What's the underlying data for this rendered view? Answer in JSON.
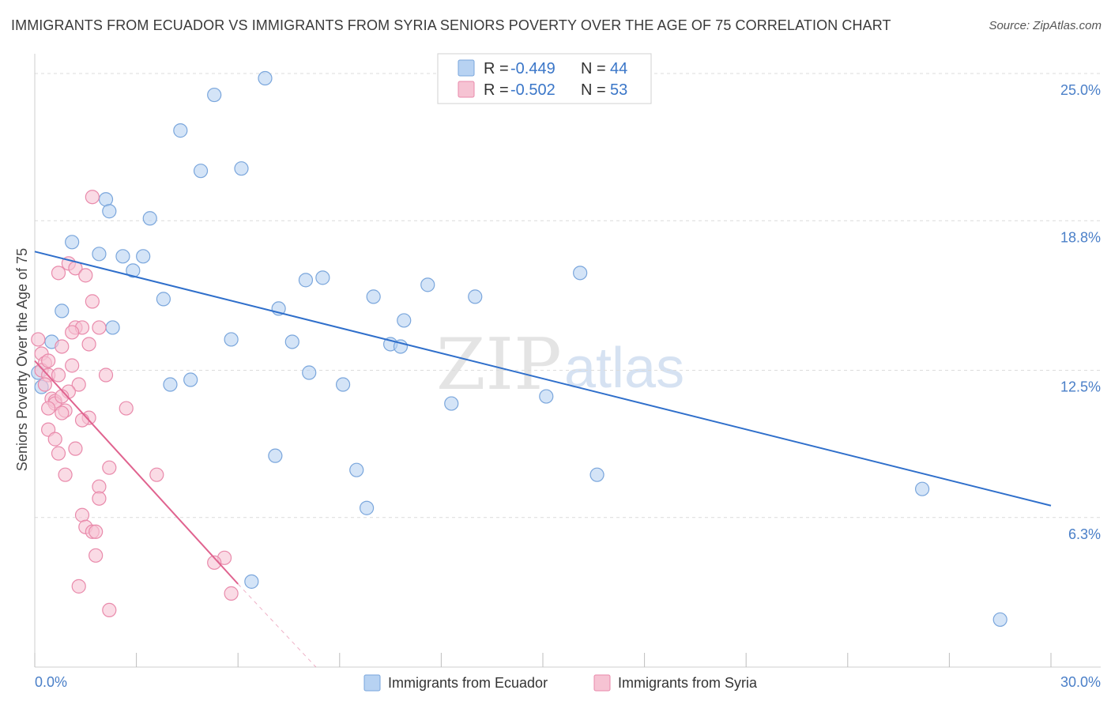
{
  "title": "IMMIGRANTS FROM ECUADOR VS IMMIGRANTS FROM SYRIA SENIORS POVERTY OVER THE AGE OF 75 CORRELATION CHART",
  "source": "Source: ZipAtlas.com",
  "watermark": {
    "zip": "ZIP",
    "atlas": "atlas"
  },
  "colors": {
    "ecuador_fill": "#b7d2f2",
    "ecuador_stroke": "#7aa6dc",
    "ecuador_line": "#2f6fcb",
    "syria_fill": "#f6c3d3",
    "syria_stroke": "#e98aab",
    "syria_line": "#e0638f",
    "grid": "#dcdcdc",
    "tick_label": "#4a7fc8"
  },
  "legend": {
    "r_label": "R =",
    "n_label": "N =",
    "rows": [
      {
        "r": "-0.449",
        "n": "44"
      },
      {
        "r": "-0.502",
        "n": "53"
      }
    ]
  },
  "chart_data": {
    "type": "scatter",
    "title": "IMMIGRANTS FROM ECUADOR VS IMMIGRANTS FROM SYRIA SENIORS POVERTY OVER THE AGE OF 75 CORRELATION CHART",
    "xlabel": "",
    "ylabel": "Seniors Poverty Over the Age of 75",
    "xlim": [
      0,
      30
    ],
    "ylim": [
      0,
      25.5
    ],
    "x_tick_labels": [
      "0.0%",
      "30.0%"
    ],
    "y_ticks": [
      6.3,
      12.5,
      18.8,
      25.0
    ],
    "y_tick_labels": [
      "6.3%",
      "12.5%",
      "18.8%",
      "25.0%"
    ],
    "grid": true,
    "legend_position": "top-center",
    "series": [
      {
        "name": "Immigrants from Ecuador",
        "points": [
          [
            6.8,
            24.8
          ],
          [
            5.3,
            24.1
          ],
          [
            4.3,
            22.6
          ],
          [
            4.9,
            20.9
          ],
          [
            6.1,
            21.0
          ],
          [
            2.1,
            19.7
          ],
          [
            2.2,
            19.2
          ],
          [
            3.4,
            18.9
          ],
          [
            1.1,
            17.9
          ],
          [
            1.9,
            17.4
          ],
          [
            2.6,
            17.3
          ],
          [
            3.2,
            17.3
          ],
          [
            2.9,
            16.7
          ],
          [
            8.0,
            16.3
          ],
          [
            8.5,
            16.4
          ],
          [
            11.6,
            16.1
          ],
          [
            16.1,
            16.6
          ],
          [
            13.0,
            15.6
          ],
          [
            10.0,
            15.6
          ],
          [
            3.8,
            15.5
          ],
          [
            7.2,
            15.1
          ],
          [
            0.8,
            15.0
          ],
          [
            10.9,
            14.6
          ],
          [
            2.3,
            14.3
          ],
          [
            0.5,
            13.7
          ],
          [
            5.8,
            13.8
          ],
          [
            7.6,
            13.7
          ],
          [
            10.5,
            13.6
          ],
          [
            10.8,
            13.5
          ],
          [
            8.1,
            12.4
          ],
          [
            4.6,
            12.1
          ],
          [
            4.0,
            11.9
          ],
          [
            9.1,
            11.9
          ],
          [
            15.1,
            11.4
          ],
          [
            12.3,
            11.1
          ],
          [
            0.2,
            11.8
          ],
          [
            7.1,
            8.9
          ],
          [
            9.5,
            8.3
          ],
          [
            16.6,
            8.1
          ],
          [
            26.2,
            7.5
          ],
          [
            9.8,
            6.7
          ],
          [
            6.4,
            3.6
          ],
          [
            28.5,
            2.0
          ],
          [
            0.1,
            12.4
          ]
        ]
      },
      {
        "name": "Immigrants from Syria",
        "points": [
          [
            1.7,
            19.8
          ],
          [
            1.0,
            17.0
          ],
          [
            1.2,
            16.8
          ],
          [
            0.7,
            16.6
          ],
          [
            1.5,
            16.5
          ],
          [
            1.7,
            15.4
          ],
          [
            1.2,
            14.3
          ],
          [
            1.9,
            14.3
          ],
          [
            1.4,
            14.3
          ],
          [
            1.1,
            14.1
          ],
          [
            0.1,
            13.8
          ],
          [
            0.8,
            13.5
          ],
          [
            1.6,
            13.6
          ],
          [
            0.2,
            13.2
          ],
          [
            0.3,
            12.8
          ],
          [
            1.1,
            12.7
          ],
          [
            0.2,
            12.5
          ],
          [
            0.4,
            12.3
          ],
          [
            0.7,
            12.3
          ],
          [
            2.1,
            12.3
          ],
          [
            0.3,
            11.9
          ],
          [
            1.3,
            11.9
          ],
          [
            1.0,
            11.6
          ],
          [
            0.5,
            11.3
          ],
          [
            0.6,
            11.2
          ],
          [
            0.6,
            11.1
          ],
          [
            0.8,
            11.4
          ],
          [
            0.4,
            10.9
          ],
          [
            0.9,
            10.8
          ],
          [
            2.7,
            10.9
          ],
          [
            0.8,
            10.7
          ],
          [
            1.6,
            10.5
          ],
          [
            1.4,
            10.4
          ],
          [
            0.4,
            10.0
          ],
          [
            0.6,
            9.6
          ],
          [
            1.2,
            9.2
          ],
          [
            0.7,
            9.0
          ],
          [
            2.2,
            8.4
          ],
          [
            0.9,
            8.1
          ],
          [
            3.6,
            8.1
          ],
          [
            1.9,
            7.6
          ],
          [
            1.9,
            7.1
          ],
          [
            1.4,
            6.4
          ],
          [
            1.5,
            5.9
          ],
          [
            1.7,
            5.7
          ],
          [
            1.8,
            5.7
          ],
          [
            1.8,
            4.7
          ],
          [
            5.6,
            4.6
          ],
          [
            5.3,
            4.4
          ],
          [
            1.3,
            3.4
          ],
          [
            5.8,
            3.1
          ],
          [
            2.2,
            2.4
          ],
          [
            0.4,
            12.9
          ]
        ]
      }
    ],
    "trendlines": [
      {
        "series": "Immigrants from Ecuador",
        "x": [
          0,
          30
        ],
        "y": [
          17.5,
          6.8
        ]
      },
      {
        "series": "Immigrants from Syria",
        "x": [
          0,
          6.0
        ],
        "y": [
          12.9,
          3.5
        ],
        "dashed_extension_to": [
          8.3,
          0
        ]
      }
    ]
  },
  "bottom_legend": [
    "Immigrants from Ecuador",
    "Immigrants from Syria"
  ]
}
